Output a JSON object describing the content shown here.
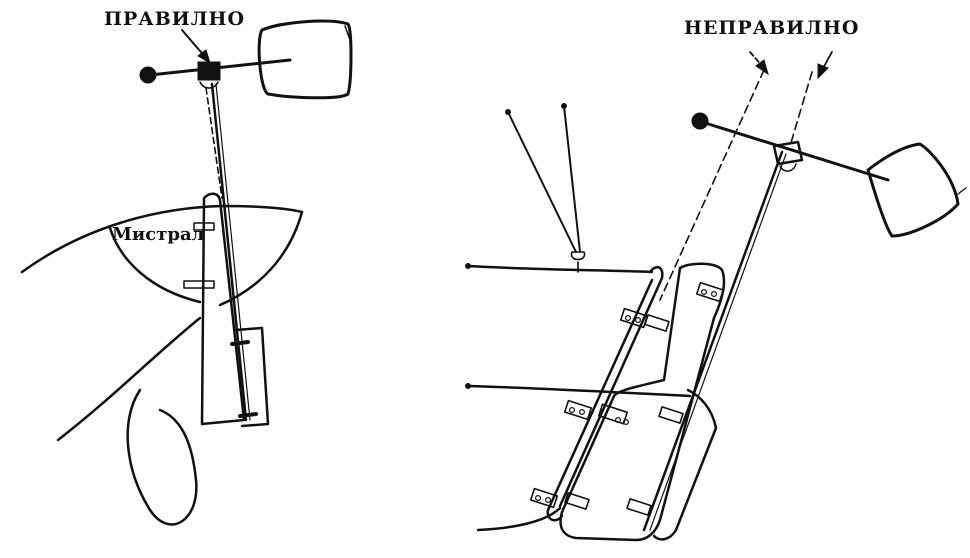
{
  "labels": {
    "correct": "ПРАВИЛНО",
    "incorrect": "НЕПРАВИЛНО",
    "boat_name": "Мистрал"
  },
  "colors": {
    "ink": "#111111",
    "paper": "#ffffff"
  },
  "panels": [
    {
      "name": "correct-setup",
      "label_key": "correct"
    },
    {
      "name": "incorrect-setup",
      "label_key": "incorrect"
    }
  ]
}
